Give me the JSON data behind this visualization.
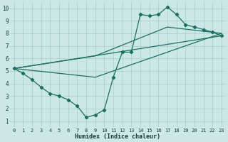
{
  "xlabel": "Humidex (Indice chaleur)",
  "background_color": "#cce8e4",
  "grid_color": "#aaccca",
  "line_color": "#1a6e64",
  "xlim": [
    -0.5,
    23.5
  ],
  "ylim": [
    0.5,
    10.5
  ],
  "xticks": [
    0,
    1,
    2,
    3,
    4,
    5,
    6,
    7,
    8,
    9,
    10,
    11,
    12,
    13,
    14,
    15,
    16,
    17,
    18,
    19,
    20,
    21,
    22,
    23
  ],
  "yticks": [
    1,
    2,
    3,
    4,
    5,
    6,
    7,
    8,
    9,
    10
  ],
  "line1_x": [
    0,
    1,
    2,
    3,
    4,
    5,
    6,
    7,
    8,
    9,
    10,
    11,
    12,
    13,
    14,
    15,
    16,
    17,
    18,
    19,
    20,
    21,
    22,
    23
  ],
  "line1_y": [
    5.2,
    4.8,
    4.3,
    3.7,
    3.2,
    3.0,
    2.7,
    2.2,
    1.3,
    1.5,
    1.9,
    4.5,
    6.5,
    6.5,
    9.5,
    9.4,
    9.5,
    10.1,
    9.5,
    8.7,
    8.5,
    8.3,
    8.1,
    7.8
  ],
  "line2_x": [
    0,
    9,
    23
  ],
  "line2_y": [
    5.2,
    4.5,
    8.0
  ],
  "line3_x": [
    0,
    9,
    17,
    23
  ],
  "line3_y": [
    5.2,
    6.2,
    8.5,
    8.0
  ],
  "line4_x": [
    0,
    23
  ],
  "line4_y": [
    5.2,
    7.8
  ]
}
